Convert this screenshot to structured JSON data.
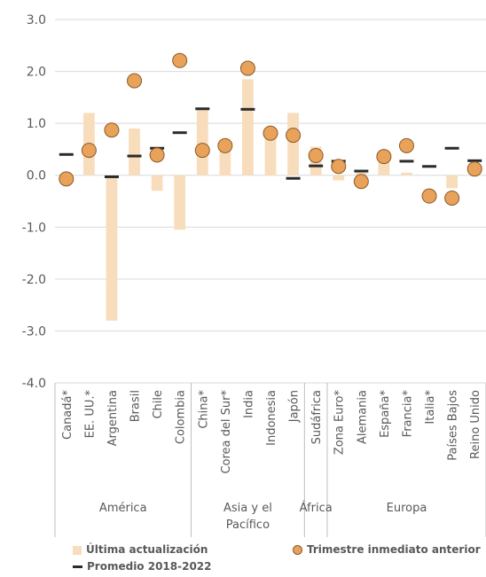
{
  "chart_data": {
    "type": "bar",
    "categories": [
      "Canadá*",
      "EE. UU.*",
      "Argentina",
      "Brasil",
      "Chile",
      "Colombia",
      "China*",
      "Corea del Sur*",
      "India",
      "Indonesia",
      "Japón",
      "Sudáfrica",
      "Zona Euro*",
      "Alemania",
      "España*",
      "Francia*",
      "Italia*",
      "Países Bajos",
      "Reino Unido"
    ],
    "groups": [
      {
        "name": "América",
        "span": [
          0,
          5
        ]
      },
      {
        "name": "Asia y el",
        "name2": "Pacífico",
        "span": [
          6,
          10
        ]
      },
      {
        "name": "África",
        "span": [
          11,
          11
        ]
      },
      {
        "name": "Europa",
        "span": [
          12,
          18
        ]
      }
    ],
    "series": [
      {
        "name": "Última actualización",
        "kind": "bar",
        "color": "#F8DDBD",
        "values": [
          0.0,
          1.2,
          -2.8,
          0.9,
          -0.3,
          -1.05,
          1.3,
          0.5,
          1.85,
          0.8,
          1.2,
          0.55,
          -0.1,
          0.05,
          0.35,
          0.05,
          0.0,
          -0.25,
          0.15
        ]
      },
      {
        "name": "Trimestre inmediato anterior",
        "kind": "marker",
        "color": "#E8A25A",
        "values": [
          -0.07,
          0.48,
          0.87,
          1.82,
          0.39,
          2.21,
          0.48,
          0.57,
          2.06,
          0.81,
          0.77,
          0.38,
          0.17,
          -0.12,
          0.36,
          0.57,
          -0.4,
          -0.44,
          0.12
        ]
      },
      {
        "name": "Promedio 2018-2022",
        "kind": "dash",
        "color": "#2B2B2B",
        "values": [
          0.4,
          0.5,
          -0.03,
          0.37,
          0.52,
          0.82,
          1.28,
          0.6,
          1.27,
          0.83,
          -0.06,
          0.18,
          0.27,
          0.08,
          0.34,
          0.27,
          0.17,
          0.52,
          0.28
        ]
      }
    ],
    "yticks": [
      "3.0",
      "2.0",
      "1.0",
      "0.0",
      "-1.0",
      "-2.0",
      "-3.0",
      "-4.0"
    ],
    "ylim": [
      -4.0,
      3.0
    ],
    "grid": true,
    "legend_position": "bottom"
  },
  "legend": {
    "bar_label": "Última actualización",
    "marker_label": "Trimestre inmediato anterior",
    "dash_label": "Promedio 2018-2022"
  }
}
